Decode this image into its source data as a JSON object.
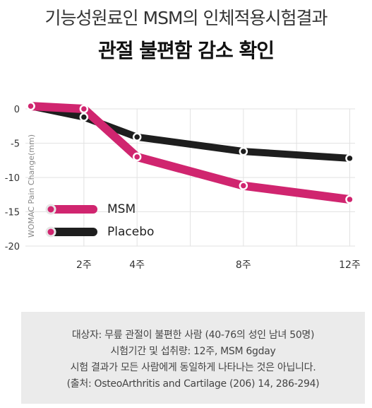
{
  "title_line1": "기능성원료인 MSM의 인체적용시험결과",
  "title_line2": "관절 불편함 감소 확인",
  "colors": {
    "msm": "#d0256f",
    "placebo": "#1e1e1e",
    "grid": "#e2e2e2"
  },
  "chart_data": {
    "type": "line",
    "x": [
      0,
      2,
      4,
      8,
      12
    ],
    "categories": [
      "",
      "2주",
      "4주",
      "8주",
      "12주"
    ],
    "ylabel": "WOMAC Pain Change(mm)",
    "ylim": [
      -20,
      0
    ],
    "yticks": [
      "0",
      "-5",
      "-10",
      "-15",
      "-20"
    ],
    "grid": true,
    "legend_position": "lower-left",
    "series": [
      {
        "name": "MSM",
        "values": [
          0.4,
          0.0,
          -7.0,
          -11.2,
          -13.2
        ]
      },
      {
        "name": "Placebo",
        "values": [
          0.4,
          -1.2,
          -4.1,
          -6.2,
          -7.2
        ]
      }
    ]
  },
  "note": {
    "lines": [
      "대상자: 무릎 관절이 불편한 사람 (40-76의 성인 남녀 50명)",
      "시험기간 및 섭취량: 12주, MSM 6gday",
      "시험 결과가 모든 사람에게 동일하게 나타나는 것은 아닙니다.",
      "(출처: OsteoArthritis and Cartilage (206) 14, 286-294)"
    ]
  }
}
